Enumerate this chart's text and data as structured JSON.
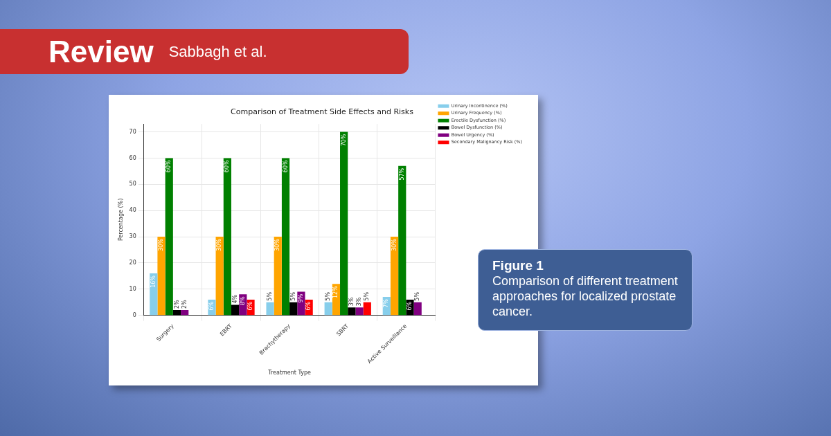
{
  "chart_data": {
    "type": "bar",
    "title": "Comparison of Treatment Side Effects and Risks",
    "xlabel": "Treatment Type",
    "ylabel": "Percentage (%)",
    "categories": [
      "Surgery",
      "EBRT",
      "Brachytherapy",
      "SBRT",
      "Active Surveillance"
    ],
    "series": [
      {
        "name": "Urinary Incontinence (%)",
        "color": "#87ceeb",
        "values": [
          16,
          6,
          5,
          5,
          7
        ],
        "value_labels": [
          "16%",
          "6%",
          "5%",
          "5%",
          "7%"
        ]
      },
      {
        "name": "Urinary Frequency (%)",
        "color": "#ffa500",
        "values": [
          30,
          30,
          30,
          12,
          30
        ],
        "value_labels": [
          "30%",
          "30%",
          "30%",
          "12%",
          "30%"
        ]
      },
      {
        "name": "Erectile Dysfunction (%)",
        "color": "#008000",
        "values": [
          60,
          60,
          60,
          70,
          57
        ],
        "value_labels": [
          "60%",
          "60%",
          "60%",
          "70%",
          "57%"
        ]
      },
      {
        "name": "Bowel Dysfunction (%)",
        "color": "#000000",
        "values": [
          2,
          4,
          5,
          3,
          6
        ],
        "value_labels": [
          "2%",
          "4%",
          "5%",
          "3%",
          "6%"
        ]
      },
      {
        "name": "Bowel Urgency (%)",
        "color": "#800080",
        "values": [
          2,
          8,
          9,
          3,
          5
        ],
        "value_labels": [
          "2%",
          "8%",
          "9%",
          "3%",
          "5%"
        ]
      },
      {
        "name": "Secondary Malignancy Risk (%)",
        "color": "#ff0000",
        "values": [
          null,
          6,
          6,
          5,
          null
        ],
        "value_labels": [
          null,
          "6%",
          "6%",
          "5%",
          null
        ]
      }
    ],
    "ylim": [
      0,
      73
    ],
    "yticks": [
      0,
      10,
      20,
      30,
      40,
      50,
      60,
      70
    ],
    "grid": true,
    "legend": "top right",
    "annotations": [
      "Review",
      "Sabbagh et al.",
      "Figure 1",
      "Comparison of different treatment approaches for localized prostate cancer."
    ]
  }
}
